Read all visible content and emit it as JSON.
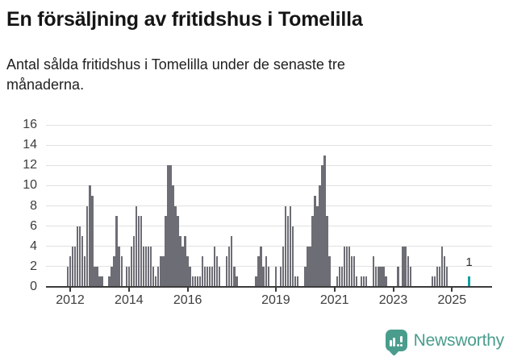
{
  "header": {
    "title": "En försäljning av fritidshus i Tomelilla",
    "subtitle": "Antal sålda fritidshus i Tomelilla under de senaste tre månaderna."
  },
  "chart_data": {
    "type": "bar",
    "title": "En försäljning av fritidshus i Tomelilla",
    "frequency": "monthly",
    "x_start": "2011-12",
    "x_end": "2025-08",
    "values": [
      2,
      3,
      4,
      4,
      6,
      6,
      5,
      3,
      8,
      10,
      9,
      2,
      2,
      1,
      1,
      0,
      0,
      1,
      2,
      3,
      7,
      4,
      3,
      0,
      2,
      2,
      4,
      5,
      8,
      7,
      7,
      4,
      4,
      4,
      4,
      2,
      1,
      2,
      3,
      3,
      7,
      12,
      12,
      10,
      8,
      7,
      5,
      4,
      5,
      3,
      2,
      1,
      1,
      1,
      1,
      3,
      2,
      2,
      2,
      2,
      4,
      3,
      2,
      0,
      0,
      3,
      4,
      5,
      2,
      1,
      0,
      0,
      0,
      0,
      0,
      0,
      0,
      1,
      3,
      4,
      2,
      3,
      2,
      0,
      0,
      2,
      0,
      2,
      4,
      8,
      7,
      8,
      6,
      1,
      1,
      0,
      0,
      2,
      4,
      4,
      7,
      9,
      8,
      10,
      12,
      13,
      7,
      3,
      0,
      0,
      1,
      2,
      2,
      4,
      4,
      4,
      3,
      3,
      1,
      0,
      1,
      1,
      1,
      0,
      0,
      3,
      2,
      2,
      2,
      2,
      1,
      0,
      0,
      0,
      0,
      2,
      0,
      4,
      4,
      3,
      2,
      0,
      0,
      0,
      0,
      0,
      0,
      0,
      0,
      1,
      1,
      2,
      2,
      4,
      3,
      2,
      0,
      0,
      0,
      0,
      0,
      0,
      0,
      0,
      1
    ],
    "ylim": [
      0,
      16
    ],
    "yticks": [
      0,
      2,
      4,
      6,
      8,
      10,
      12,
      14,
      16
    ],
    "xtick_labels": [
      "2012",
      "2014",
      "2016",
      "2019",
      "2021",
      "2023",
      "2025"
    ],
    "xtick_month_index": [
      1,
      25,
      49,
      85,
      109,
      133,
      157
    ],
    "grid": "horizontal",
    "legend": "none",
    "bar_color": "#6d6d75",
    "highlight": {
      "month": "2025-08",
      "index": 164,
      "value": 1,
      "label": "1",
      "color": "#14a0a0"
    }
  },
  "footer": {
    "brand": "Newsworthy",
    "logo_icon": "newsworthy-bar-chart-bubble-icon",
    "logo_color": "#4a9d8d"
  }
}
